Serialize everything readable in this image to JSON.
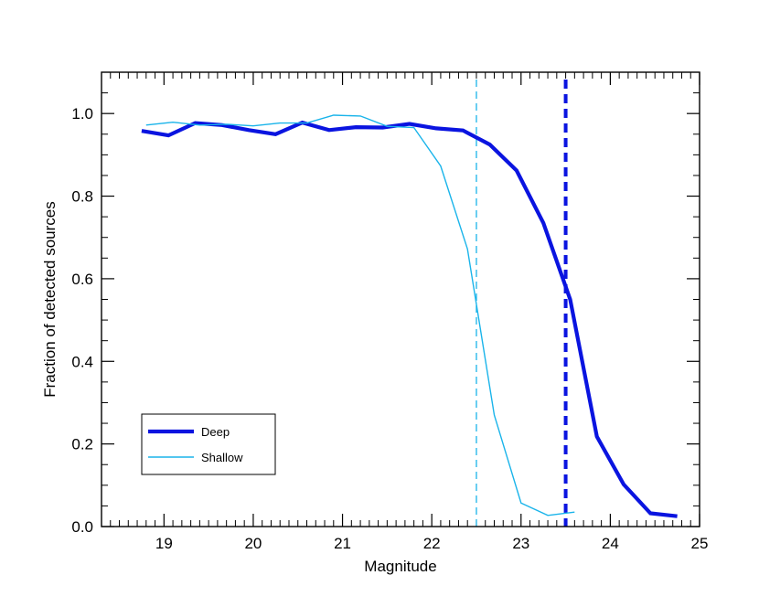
{
  "chart_data": {
    "type": "line",
    "title": "",
    "xlabel": "Magnitude",
    "ylabel": "Fraction of detected sources",
    "xlim": [
      18.3,
      25
    ],
    "ylim": [
      0.0,
      1.1
    ],
    "x_ticks": [
      19,
      20,
      21,
      22,
      23,
      24,
      25
    ],
    "x_tick_labels": [
      "19",
      "20",
      "21",
      "22",
      "23",
      "24",
      "25"
    ],
    "y_ticks": [
      0.0,
      0.2,
      0.4,
      0.6,
      0.8,
      1.0
    ],
    "y_tick_labels": [
      "0.0",
      "0.2",
      "0.4",
      "0.6",
      "0.8",
      "1.0"
    ],
    "legend_position": "bottom-left",
    "series": [
      {
        "name": "Deep",
        "color": "#0a14e0",
        "style": "thick",
        "x": [
          18.75,
          19.05,
          19.35,
          19.65,
          19.95,
          20.25,
          20.55,
          20.85,
          21.15,
          21.45,
          21.75,
          22.05,
          22.35,
          22.65,
          22.95,
          23.25,
          23.55,
          23.85,
          24.15,
          24.45,
          24.75
        ],
        "y": [
          0.958,
          0.947,
          0.977,
          0.972,
          0.96,
          0.95,
          0.978,
          0.96,
          0.967,
          0.966,
          0.975,
          0.964,
          0.959,
          0.925,
          0.862,
          0.735,
          0.55,
          0.218,
          0.102,
          0.032,
          0.025
        ]
      },
      {
        "name": "Shallow",
        "color": "#1ab4ea",
        "style": "thin",
        "x": [
          18.8,
          19.1,
          19.4,
          19.7,
          20.0,
          20.3,
          20.6,
          20.9,
          21.2,
          21.5,
          21.8,
          22.1,
          22.4,
          22.7,
          23.0,
          23.3,
          23.6
        ],
        "y": [
          0.972,
          0.979,
          0.972,
          0.974,
          0.97,
          0.977,
          0.977,
          0.996,
          0.994,
          0.969,
          0.966,
          0.873,
          0.672,
          0.27,
          0.057,
          0.027,
          0.035
        ]
      }
    ],
    "vertical_lines": [
      {
        "x": 22.5,
        "color": "#1ab4ea",
        "style": "thin-dashed"
      },
      {
        "x": 23.5,
        "color": "#0a14e0",
        "style": "thick-dashed"
      }
    ]
  }
}
